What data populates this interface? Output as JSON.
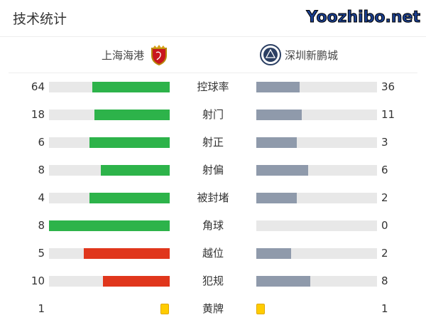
{
  "title": "技术统计",
  "home": {
    "name": "上海海港"
  },
  "away": {
    "name": "深圳新鹏城"
  },
  "colors": {
    "green": "#2db34a",
    "red": "#e0361c",
    "gray": "#8f9aab",
    "track": "#e8e8e8",
    "yellow": "#ffcc00"
  },
  "stats": [
    {
      "label": "控球率",
      "home": "64",
      "away": "36",
      "home_color": "green"
    },
    {
      "label": "射门",
      "home": "18",
      "away": "11",
      "home_color": "green"
    },
    {
      "label": "射正",
      "home": "6",
      "away": "3",
      "home_color": "green"
    },
    {
      "label": "射偏",
      "home": "8",
      "away": "6",
      "home_color": "green"
    },
    {
      "label": "被封堵",
      "home": "4",
      "away": "2",
      "home_color": "green"
    },
    {
      "label": "角球",
      "home": "8",
      "away": "0",
      "home_color": "green"
    },
    {
      "label": "越位",
      "home": "5",
      "away": "2",
      "home_color": "red"
    },
    {
      "label": "犯规",
      "home": "10",
      "away": "8",
      "home_color": "red"
    },
    {
      "label": "黄牌",
      "home": "1",
      "away": "1",
      "type": "card"
    }
  ],
  "watermark": "Yoozhibo.net"
}
